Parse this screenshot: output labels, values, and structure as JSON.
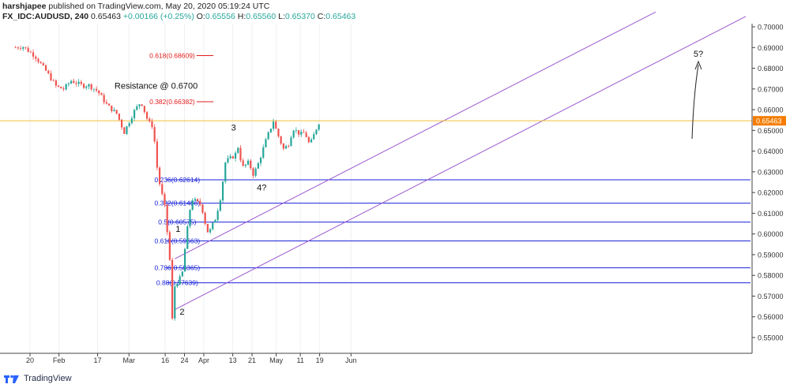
{
  "header": {
    "publisher": "harshjapee",
    "published_text": "published on TradingView.com, May 20, 2020 05:19:24 UTC",
    "symbol": "FX_IDC:AUDUSD, 240",
    "last": "0.65463",
    "change": "+0.00166 (+0.25%)",
    "o_label": "O:",
    "o_value": "0.65556",
    "h_label": "H:",
    "h_value": "0.65560",
    "l_label": "L:",
    "l_value": "0.65370",
    "c_label": "C:",
    "c_value": "0.65463"
  },
  "footer": {
    "brand": "TradingView"
  },
  "colors": {
    "up": "#26a69a",
    "down": "#ef5350",
    "fib_blue": "#1a23d9",
    "fib_red": "#e21d1d",
    "channel": "#9b59d0",
    "price_line": "#f0c23a",
    "price_badge": "#f57c00"
  },
  "chart_data": {
    "type": "candlestick",
    "ylim": [
      0.545,
      0.7
    ],
    "y_ticks": [
      "0.70000",
      "0.69000",
      "0.68000",
      "0.67000",
      "0.66000",
      "0.65000",
      "0.64000",
      "0.63000",
      "0.62000",
      "0.61000",
      "0.60000",
      "0.59000",
      "0.58000",
      "0.57000",
      "0.56000",
      "0.55000"
    ],
    "x_ticks": [
      "20",
      "Feb",
      "17",
      "Mar",
      "16",
      "24",
      "Apr",
      "13",
      "21",
      "May",
      "11",
      "19",
      "Jun"
    ],
    "current_price": "0.65463",
    "close_path": [
      {
        "date": "Jan 14",
        "close": 0.69
      },
      {
        "date": "Jan 17",
        "close": 0.6905
      },
      {
        "date": "Jan 22",
        "close": 0.686
      },
      {
        "date": "Jan 27",
        "close": 0.678
      },
      {
        "date": "Jan 31",
        "close": 0.671
      },
      {
        "date": "Feb 03",
        "close": 0.67
      },
      {
        "date": "Feb 06",
        "close": 0.674
      },
      {
        "date": "Feb 11",
        "close": 0.6715
      },
      {
        "date": "Feb 13",
        "close": 0.672
      },
      {
        "date": "Feb 17",
        "close": 0.669
      },
      {
        "date": "Feb 21",
        "close": 0.662
      },
      {
        "date": "Feb 25",
        "close": 0.658
      },
      {
        "date": "Feb 28",
        "close": 0.649
      },
      {
        "date": "Mar 03",
        "close": 0.659
      },
      {
        "date": "Mar 06",
        "close": 0.664
      },
      {
        "date": "Mar 09",
        "close": 0.654
      },
      {
        "date": "Mar 11",
        "close": 0.652
      },
      {
        "date": "Mar 13",
        "close": 0.628
      },
      {
        "date": "Mar 16",
        "close": 0.612
      },
      {
        "date": "Mar 18",
        "close": 0.586
      },
      {
        "date": "Mar 19",
        "close": 0.557
      },
      {
        "date": "Mar 20",
        "close": 0.575
      },
      {
        "date": "Mar 23",
        "close": 0.58
      },
      {
        "date": "Mar 24",
        "close": 0.591
      },
      {
        "date": "Mar 26",
        "close": 0.61
      },
      {
        "date": "Mar 27",
        "close": 0.617
      },
      {
        "date": "Mar 31",
        "close": 0.614
      },
      {
        "date": "Apr 02",
        "close": 0.603
      },
      {
        "date": "Apr 03",
        "close": 0.6
      },
      {
        "date": "Apr 06",
        "close": 0.608
      },
      {
        "date": "Apr 08",
        "close": 0.618
      },
      {
        "date": "Apr 10",
        "close": 0.635
      },
      {
        "date": "Apr 14",
        "close": 0.638
      },
      {
        "date": "Apr 15",
        "close": 0.643
      },
      {
        "date": "Apr 17",
        "close": 0.632
      },
      {
        "date": "Apr 20",
        "close": 0.635
      },
      {
        "date": "Apr 21",
        "close": 0.628
      },
      {
        "date": "Apr 23",
        "close": 0.632
      },
      {
        "date": "Apr 27",
        "close": 0.646
      },
      {
        "date": "Apr 30",
        "close": 0.655
      },
      {
        "date": "May 01",
        "close": 0.65
      },
      {
        "date": "May 04",
        "close": 0.641
      },
      {
        "date": "May 06",
        "close": 0.643
      },
      {
        "date": "May 08",
        "close": 0.651
      },
      {
        "date": "May 11",
        "close": 0.648
      },
      {
        "date": "May 13",
        "close": 0.649
      },
      {
        "date": "May 14",
        "close": 0.645
      },
      {
        "date": "May 15",
        "close": 0.643
      },
      {
        "date": "May 18",
        "close": 0.652
      },
      {
        "date": "May 19",
        "close": 0.6546
      }
    ],
    "fib_retracement": [
      {
        "label": "0.236(0.62614)",
        "level": 0.62614
      },
      {
        "label": "0.382(0.61486)",
        "level": 0.61486
      },
      {
        "label": "0.5(0.60575)",
        "level": 0.60575
      },
      {
        "label": "0.618(0.59663)",
        "level": 0.59663
      },
      {
        "label": "0.786(0.58365)",
        "level": 0.58365
      },
      {
        "label": "0.88(0.57639)",
        "level": 0.57639
      }
    ],
    "fib_extension": [
      {
        "label": "0.618(0.68609)",
        "level": 0.68609
      },
      {
        "label": "0.382(0.66382)",
        "level": 0.66382
      }
    ],
    "annotations": [
      {
        "text": "Resistance @ 0.6700"
      },
      {
        "text": "1"
      },
      {
        "text": "2"
      },
      {
        "text": "3"
      },
      {
        "text": "4?"
      },
      {
        "text": "5?"
      }
    ]
  }
}
